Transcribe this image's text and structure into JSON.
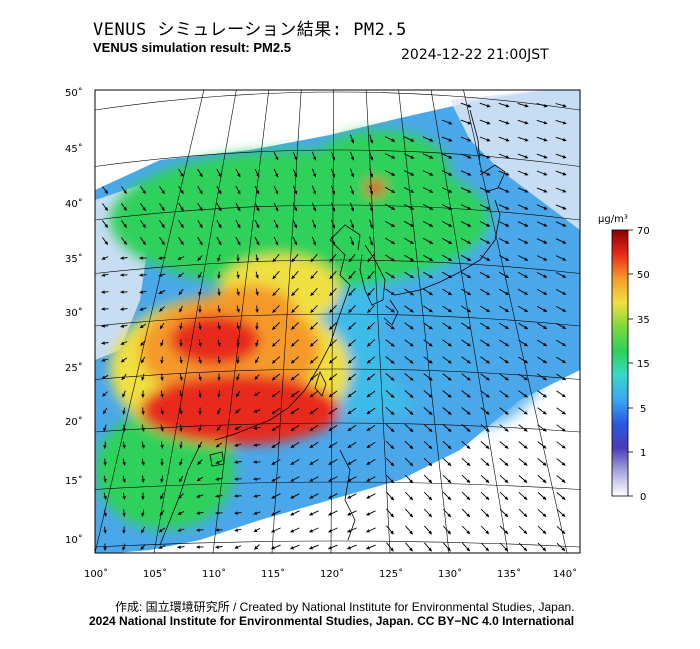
{
  "header": {
    "title_jp": "VENUS シミュレーション結果: PM2.5",
    "title_en": "VENUS simulation result: PM2.5",
    "timestamp": "2024-12-22 21:00JST"
  },
  "map": {
    "lat_labels": [
      "50˚",
      "45˚",
      "40˚",
      "35˚",
      "30˚",
      "25˚",
      "20˚",
      "15˚",
      "10˚"
    ],
    "lon_labels": [
      "100˚",
      "105˚",
      "110˚",
      "115˚",
      "120˚",
      "125˚",
      "130˚",
      "135˚",
      "140˚"
    ],
    "palette": {
      "ocean_low": "#4aa8ea",
      "ocean_mid": "#3cc0e8",
      "land_green": "#2ed15a",
      "yellow": "#f0e040",
      "orange": "#f59a2a",
      "red": "#e82a1a",
      "white_clean": "#dde6f5"
    }
  },
  "colorbar": {
    "unit": "μg/m³",
    "labels": [
      "70",
      "50",
      "35",
      "15",
      "5",
      "1",
      "0"
    ],
    "stops": [
      "#8a0000",
      "#e82a1a",
      "#f59a2a",
      "#f0e040",
      "#7ed83a",
      "#2ed15a",
      "#38d8c8",
      "#3aa8f0",
      "#2a5ae0",
      "#4a3ab8",
      "#a8a8e0",
      "#ffffff"
    ]
  },
  "footer": {
    "credit": "作成: 国立環境研究所 / Created by National Institute for Environmental Studies, Japan.",
    "copyright": "2024 National Institute for Environmental Studies, Japan. CC BY−NC 4.0 International"
  }
}
